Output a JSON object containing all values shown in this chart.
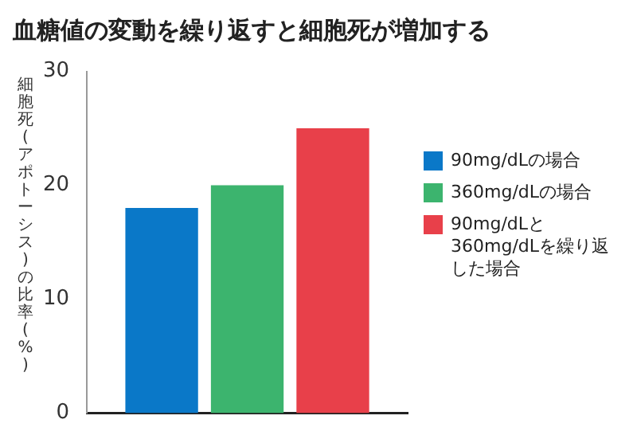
{
  "chart_data": {
    "type": "bar",
    "title": "血糖値の変動を繰り返すと細胞死が増加する",
    "ylabel": "細胞死(アポトーシス)の比率(%)",
    "categories": [
      null
    ],
    "series": [
      {
        "name": "90mg/dLの場合",
        "color": "#0a78c8",
        "values": [
          18
        ]
      },
      {
        "name": "360mg/dLの場合",
        "color": "#3cb46e",
        "values": [
          20
        ]
      },
      {
        "name": "90mg/dLと360mg/dLを繰り返した場合",
        "color": "#e8404a",
        "values": [
          25
        ]
      }
    ],
    "ylim": [
      0,
      30
    ],
    "yticks": [
      0,
      10,
      20,
      30
    ],
    "grid": false,
    "legend": "right"
  }
}
